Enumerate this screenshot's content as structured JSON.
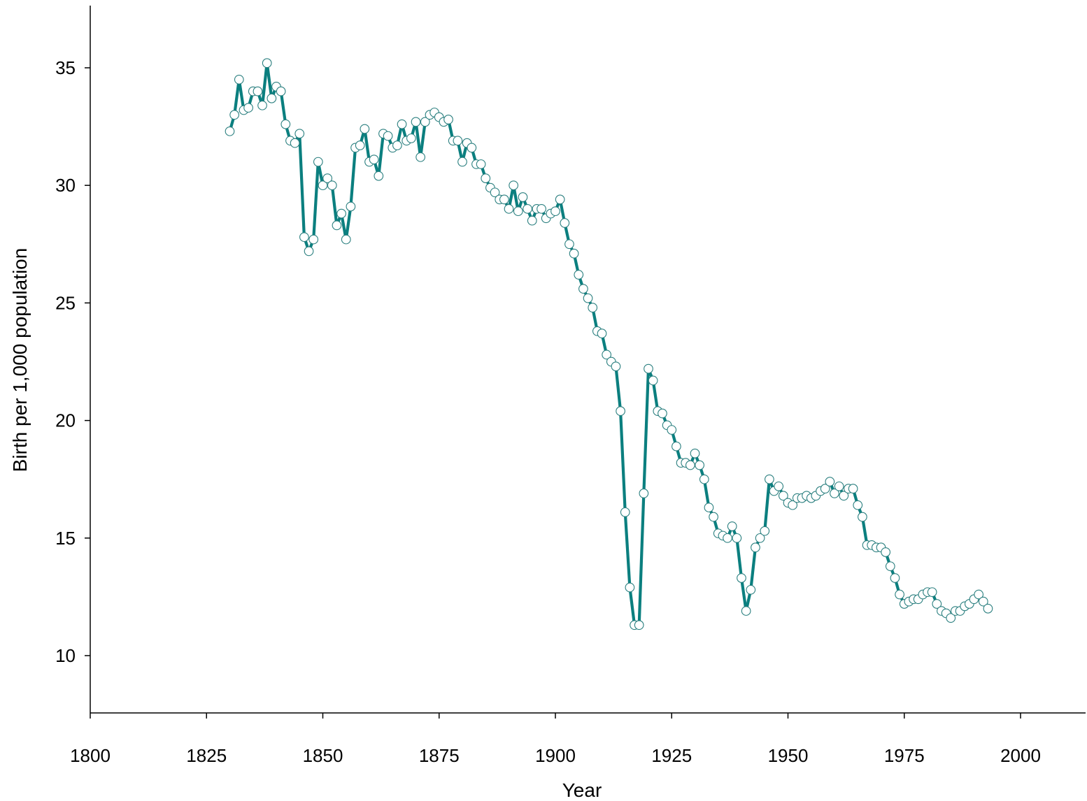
{
  "chart_data": {
    "type": "scatter",
    "xlabel": "Year",
    "ylabel": "Birth per 1,000 population",
    "xlim": [
      1800,
      2015
    ],
    "ylim": [
      7.6,
      37.6
    ],
    "xticks": [
      "1800",
      "1825",
      "1850",
      "1875",
      "1900",
      "1925",
      "1950",
      "1975",
      "2000"
    ],
    "yticks": [
      "10",
      "15",
      "20",
      "25",
      "30",
      "35"
    ],
    "grid": false,
    "legend": "none",
    "colors": {
      "marker_edge": "#2a7f7f",
      "marker_fill": "#ffffff",
      "line": "#0b7f7f"
    },
    "series": [
      {
        "marker": "open-circle",
        "x": [
          1830,
          1831,
          1832,
          1833,
          1834,
          1835,
          1836,
          1837,
          1838,
          1839,
          1840,
          1841,
          1842,
          1843,
          1844,
          1845,
          1846,
          1847,
          1848,
          1849,
          1850,
          1851,
          1852,
          1853,
          1854,
          1855,
          1856,
          1857,
          1858,
          1859,
          1860,
          1861,
          1862,
          1863,
          1864,
          1865,
          1866,
          1867,
          1868,
          1869,
          1870,
          1871,
          1872,
          1873,
          1874,
          1875,
          1876,
          1877,
          1878,
          1879,
          1880,
          1881,
          1882,
          1883,
          1884,
          1885,
          1886,
          1887,
          1888,
          1889,
          1890,
          1891,
          1892,
          1893,
          1894,
          1895,
          1896,
          1897,
          1898,
          1899,
          1900,
          1901,
          1902,
          1903,
          1904,
          1905,
          1906,
          1907,
          1908,
          1909,
          1910,
          1911,
          1912,
          1913,
          1914,
          1915,
          1916,
          1917,
          1918,
          1919,
          1920,
          1921,
          1922,
          1923,
          1924,
          1925,
          1926,
          1927,
          1928,
          1929,
          1930,
          1931,
          1932,
          1933,
          1934,
          1935,
          1936,
          1937,
          1938,
          1939,
          1940,
          1941,
          1942,
          1943,
          1944,
          1945,
          1946,
          1947,
          1948,
          1949,
          1950,
          1951,
          1952,
          1953,
          1954,
          1955,
          1956,
          1957,
          1958,
          1959,
          1960,
          1961,
          1962,
          1963,
          1964,
          1965,
          1966,
          1967,
          1968,
          1969,
          1970,
          1971,
          1972,
          1973,
          1974,
          1975,
          1976,
          1977,
          1978,
          1979,
          1980,
          1981,
          1982,
          1983,
          1984,
          1985,
          1986,
          1987,
          1988,
          1989,
          1990,
          1991,
          1992,
          1993
        ],
        "y": [
          32.3,
          33.0,
          34.5,
          33.2,
          33.3,
          34.0,
          34.0,
          33.4,
          35.2,
          33.7,
          34.2,
          34.0,
          32.6,
          31.9,
          31.8,
          32.2,
          27.8,
          27.2,
          27.7,
          31.0,
          30.0,
          30.3,
          30.0,
          28.3,
          28.8,
          27.7,
          29.1,
          31.6,
          31.7,
          32.4,
          31.0,
          31.1,
          30.4,
          32.2,
          32.1,
          31.6,
          31.7,
          32.6,
          31.9,
          32.0,
          32.7,
          31.2,
          32.7,
          33.0,
          33.1,
          32.9,
          32.7,
          32.8,
          31.9,
          31.9,
          31.0,
          31.8,
          31.6,
          30.9,
          30.9,
          30.3,
          29.9,
          29.7,
          29.4,
          29.4,
          29.0,
          30.0,
          28.9,
          29.5,
          29.0,
          28.5,
          29.0,
          29.0,
          28.6,
          28.8,
          28.9,
          29.4,
          28.4,
          27.5,
          27.1,
          26.2,
          25.6,
          25.2,
          24.8,
          23.8,
          23.7,
          22.8,
          22.5,
          22.3,
          20.4,
          16.1,
          12.9,
          11.3,
          11.3,
          16.9,
          22.2,
          21.7,
          20.4,
          20.3,
          19.8,
          19.6,
          18.9,
          18.2,
          18.2,
          18.1,
          18.6,
          18.1,
          17.5,
          16.3,
          15.9,
          15.2,
          15.1,
          15.0,
          15.5,
          15.0,
          13.3,
          11.9,
          12.8,
          14.6,
          15.0,
          15.3,
          17.5,
          17.0,
          17.2,
          16.8,
          16.5,
          16.4,
          16.7,
          16.7,
          16.8,
          16.7,
          16.8,
          17.0,
          17.1,
          17.4,
          16.9,
          17.2,
          16.8,
          17.1,
          17.1,
          16.4,
          15.9,
          14.7,
          14.7,
          14.6,
          14.6,
          14.4,
          13.8,
          13.3,
          12.6,
          12.2,
          12.3,
          12.4,
          12.4,
          12.6,
          12.7,
          12.7,
          12.2,
          11.9,
          11.8,
          11.6,
          11.9,
          11.9,
          12.1,
          12.2,
          12.4,
          12.6,
          12.3,
          12.0
        ]
      }
    ]
  }
}
